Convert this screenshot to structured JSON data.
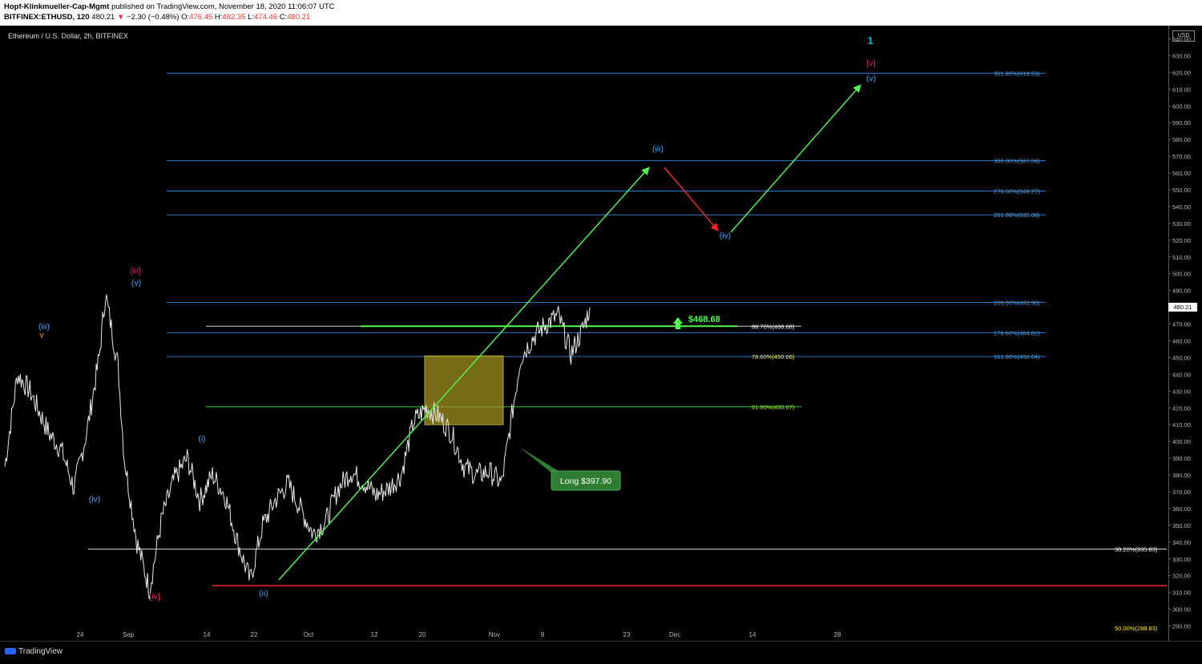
{
  "header": {
    "author": "Hopf-Klinkmueller-Cap-Mgmt",
    "published": "published on TradingView.com, November 18, 2020 11:06:07 UTC",
    "symbol": "BITFINEX:ETHUSD, 120",
    "last": "480.21",
    "change_arrow": "▼",
    "change": "−2.30 (−0.48%)",
    "o_label": "O:",
    "o": "476.45",
    "h_label": "H:",
    "h": "482.35",
    "l_label": "L:",
    "l": "474.46",
    "c_label": "C:",
    "c": "480.21"
  },
  "chart_title": "Ethereum / U.S. Dollar, 2h, BITFINEX",
  "currency": "USD",
  "current_price_tag": "480.21",
  "brand": "TradingView",
  "chart_data": {
    "type": "line",
    "y_range": [
      285,
      645
    ],
    "y_ticks": [
      "290.00",
      "300.00",
      "310.00",
      "320.00",
      "330.00",
      "340.00",
      "350.00",
      "360.00",
      "370.00",
      "380.00",
      "390.00",
      "400.00",
      "410.00",
      "420.00",
      "430.00",
      "440.00",
      "450.00",
      "460.00",
      "470.00",
      "480.00",
      "490.00",
      "500.00",
      "510.00",
      "520.00",
      "530.00",
      "540.00",
      "550.00",
      "560.00",
      "570.00",
      "580.00",
      "590.00",
      "600.00",
      "610.00",
      "620.00",
      "630.00",
      "640.00"
    ],
    "x_ticks": [
      "24",
      "Sep",
      "14",
      "22",
      "Oct",
      "12",
      "20",
      "Nov",
      "9",
      "23",
      "Dec",
      "14",
      "28"
    ],
    "price_series": {
      "x": [
        "2020-08-17",
        "2020-08-19",
        "2020-08-21",
        "2020-08-24",
        "2020-08-26",
        "2020-08-28",
        "2020-08-30",
        "2020-09-01",
        "2020-09-02",
        "2020-09-04",
        "2020-09-05",
        "2020-09-07",
        "2020-09-09",
        "2020-09-11",
        "2020-09-13",
        "2020-09-15",
        "2020-09-17",
        "2020-09-19",
        "2020-09-21",
        "2020-09-23",
        "2020-09-25",
        "2020-09-27",
        "2020-09-29",
        "2020-10-01",
        "2020-10-03",
        "2020-10-05",
        "2020-10-07",
        "2020-10-09",
        "2020-10-11",
        "2020-10-13",
        "2020-10-15",
        "2020-10-17",
        "2020-10-19",
        "2020-10-21",
        "2020-10-23",
        "2020-10-25",
        "2020-10-27",
        "2020-10-29",
        "2020-10-31",
        "2020-11-02",
        "2020-11-04",
        "2020-11-05",
        "2020-11-07",
        "2020-11-09",
        "2020-11-11",
        "2020-11-13",
        "2020-11-15",
        "2020-11-17",
        "2020-11-18"
      ],
      "y": [
        385,
        440,
        430,
        405,
        395,
        372,
        405,
        450,
        488,
        445,
        390,
        340,
        312,
        355,
        378,
        390,
        365,
        380,
        368,
        340,
        317,
        350,
        365,
        375,
        360,
        345,
        352,
        372,
        382,
        376,
        368,
        372,
        380,
        412,
        420,
        415,
        405,
        385,
        380,
        382,
        375,
        400,
        450,
        462,
        470,
        475,
        452,
        468,
        480
      ]
    },
    "fib_levels": [
      {
        "label": "361.80%(619.53)",
        "value": 619.53,
        "color": "#2e7bc9",
        "text_color": "#42a5f5"
      },
      {
        "label": "300.00%(567.34)",
        "value": 567.34,
        "color": "#2e7bc9",
        "text_color": "#42a5f5"
      },
      {
        "label": "278.60%(549.27)",
        "value": 549.27,
        "color": "#2e7bc9",
        "text_color": "#42a5f5"
      },
      {
        "label": "261.80%(535.08)",
        "value": 535.08,
        "color": "#2e7bc9",
        "text_color": "#42a5f5"
      },
      {
        "label": "200.00%(482.90)",
        "value": 482.9,
        "color": "#2e7bc9",
        "text_color": "#42a5f5"
      },
      {
        "label": "178.60%(464.82)",
        "value": 464.82,
        "color": "#2e7bc9",
        "text_color": "#42a5f5"
      },
      {
        "label": "161.80%(450.64)",
        "value": 450.64,
        "color": "#2e7bc9",
        "text_color": "#42a5f5"
      }
    ],
    "retracement_levels": [
      {
        "label": "88.70%(468.68)",
        "value": 468.68,
        "color": "#cfcfcf",
        "text_color": "#ffffff"
      },
      {
        "label": "78.60%(450.66)",
        "value": 450.66,
        "color": "#000000",
        "text_color": "#ffeb3b"
      },
      {
        "label": "61.80%(420.67)",
        "value": 420.67,
        "color": "#2ecc40",
        "text_color": "#aeea00"
      },
      {
        "label": "38.20%(335.83)",
        "value": 335.83,
        "color": "#cfcfcf",
        "text_color": "#ffffff"
      },
      {
        "label": "50.00%(288.83)",
        "value": 288.83,
        "color": "#000000",
        "text_color": "#ffeb3b"
      }
    ],
    "support_line": {
      "value": 314,
      "color": "#ff1f1f"
    },
    "target_line": {
      "value": 468.68,
      "color": "#4cff4c"
    },
    "target_label": "$468.68",
    "long_label": "Long $397.90",
    "zone": {
      "price_top": 451,
      "price_bottom": 410
    },
    "wave_labels": [
      {
        "text": "(iii)",
        "price": 467,
        "color": "#42a5f5"
      },
      {
        "text": "v",
        "price": 462,
        "color": "#ff9800"
      },
      {
        "text": "(iv)",
        "price": 364,
        "color": "#42a5f5"
      },
      {
        "text": "[iii]",
        "price": 500,
        "color": "#e91e63"
      },
      {
        "text": "(v)",
        "price": 493,
        "color": "#42a5f5"
      },
      {
        "text": "[iv]",
        "price": 306,
        "color": "#e91e63"
      },
      {
        "text": "(i)",
        "price": 400,
        "color": "#42a5f5"
      },
      {
        "text": "(ii)",
        "price": 308,
        "color": "#42a5f5"
      },
      {
        "text": "(iii)",
        "price": 573,
        "color": "#42a5f5"
      },
      {
        "text": "(iv)",
        "price": 521,
        "color": "#42a5f5"
      },
      {
        "text": "1",
        "price": 637,
        "color": "#00bcd4"
      },
      {
        "text": "[v]",
        "price": 624,
        "color": "#e91e63"
      },
      {
        "text": "(v)",
        "price": 615,
        "color": "#42a5f5"
      }
    ]
  }
}
